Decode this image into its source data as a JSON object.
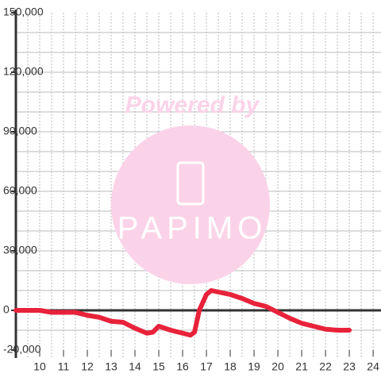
{
  "chart_data": {
    "type": "line",
    "x": [
      9,
      10,
      10.5,
      11,
      11.5,
      12,
      12.5,
      13,
      13.5,
      14,
      14.5,
      14.75,
      15,
      15.5,
      16,
      16.33,
      16.5,
      16.7,
      17,
      17.2,
      18,
      18.5,
      19,
      19.5,
      20,
      20.5,
      21,
      21.5,
      22,
      22.5,
      23
    ],
    "series": [
      {
        "color": "#e8223a",
        "values": [
          0,
          0,
          -1000,
          -1000,
          -1000,
          -2500,
          -3500,
          -5500,
          -6000,
          -9000,
          -11500,
          -11000,
          -8000,
          -10000,
          -11500,
          -12500,
          -11000,
          0,
          8000,
          10000,
          8000,
          6000,
          3500,
          2000,
          -1000,
          -4000,
          -6500,
          -8000,
          -9500,
          -10000,
          -10000
        ]
      }
    ],
    "xlim": [
      9,
      24.33
    ],
    "xticks": [
      10,
      11,
      12,
      13,
      14,
      15,
      16,
      17,
      18,
      19,
      20,
      21,
      22,
      23,
      24
    ],
    "xgrid": [
      9.5,
      10,
      10.5,
      11,
      11.5,
      12,
      12.5,
      13,
      13.5,
      14,
      14.5,
      15,
      15.5,
      16,
      16.5,
      17,
      17.5,
      18,
      18.5,
      19,
      19.5,
      20,
      20.5,
      21,
      21.5,
      22,
      22.5,
      23,
      23.5,
      24
    ],
    "ylim": [
      -20000,
      150000
    ],
    "yticks": [
      {
        "value": -20000,
        "label": "-20,000"
      },
      0,
      {
        "value": 30000,
        "label": "30,000"
      },
      {
        "value": 60000,
        "label": "60,000"
      },
      {
        "value": 90000,
        "label": "90,000"
      },
      {
        "value": 120000,
        "label": "120,000"
      },
      {
        "value": 150000,
        "label": "150,000"
      }
    ],
    "ygrid": [
      -10000,
      10000,
      20000,
      30000,
      40000,
      50000,
      60000,
      70000,
      80000,
      90000,
      100000,
      110000,
      120000,
      130000,
      140000
    ]
  },
  "watermark": {
    "top": "Powered by",
    "brand": "PAPIMO"
  }
}
